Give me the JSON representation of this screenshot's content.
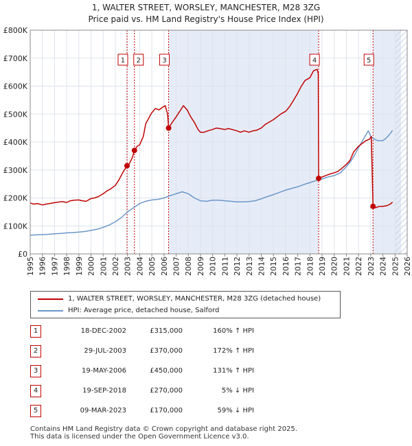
{
  "title_line1": "1, WALTER STREET, WORSLEY, MANCHESTER, M28 3ZG",
  "title_line2": "Price paid vs. HM Land Registry's House Price Index (HPI)",
  "chart_data": {
    "type": "line",
    "xlim": [
      1995,
      2026
    ],
    "ylim": [
      0,
      800000
    ],
    "y_ticks": [
      {
        "value": 0,
        "label": "£0"
      },
      {
        "value": 100000,
        "label": "£100K"
      },
      {
        "value": 200000,
        "label": "£200K"
      },
      {
        "value": 300000,
        "label": "£300K"
      },
      {
        "value": 400000,
        "label": "£400K"
      },
      {
        "value": 500000,
        "label": "£500K"
      },
      {
        "value": 600000,
        "label": "£600K"
      },
      {
        "value": 700000,
        "label": "£700K"
      },
      {
        "value": 800000,
        "label": "£800K"
      }
    ],
    "x_ticks": [
      "1995",
      "1996",
      "1997",
      "1998",
      "1999",
      "2000",
      "2001",
      "2002",
      "2003",
      "2004",
      "2005",
      "2006",
      "2007",
      "2008",
      "2009",
      "2010",
      "2011",
      "2012",
      "2013",
      "2014",
      "2015",
      "2016",
      "2017",
      "2018",
      "2019",
      "2020",
      "2021",
      "2022",
      "2023",
      "2024",
      "2025",
      "2026"
    ],
    "grid": true,
    "legend_position": "below",
    "colors": {
      "property": "#c00000",
      "hpi": "#6a96c8",
      "shade": "#e6ecf7",
      "hatch": "#c8d2e3"
    },
    "shaded_spans": [
      [
        2006.38,
        2018.72
      ],
      [
        2023.19,
        2025.5
      ]
    ],
    "hatched_span": [
      2025.0,
      2026.0
    ],
    "series": [
      {
        "name": "1, WALTER STREET, WORSLEY, MANCHESTER, M28 3ZG (detached house)",
        "x": [
          1995.0,
          1995.3,
          1995.6,
          1996.0,
          1996.3,
          1996.6,
          1997.0,
          1997.3,
          1997.6,
          1998.0,
          1998.3,
          1998.6,
          1999.0,
          1999.3,
          1999.6,
          2000.0,
          2000.3,
          2000.6,
          2001.0,
          2001.3,
          2001.6,
          2002.0,
          2002.3,
          2002.6,
          2002.96,
          2003.1,
          2003.4,
          2003.57,
          2003.8,
          2004.0,
          2004.3,
          2004.5,
          2004.8,
          2005.0,
          2005.3,
          2005.6,
          2005.9,
          2006.1,
          2006.3,
          2006.38,
          2006.6,
          2007.0,
          2007.3,
          2007.6,
          2007.9,
          2008.2,
          2008.5,
          2008.8,
          2009.0,
          2009.3,
          2009.6,
          2010.0,
          2010.3,
          2010.6,
          2011.0,
          2011.3,
          2011.6,
          2012.0,
          2012.3,
          2012.6,
          2013.0,
          2013.3,
          2013.6,
          2014.0,
          2014.3,
          2014.6,
          2015.0,
          2015.3,
          2015.6,
          2016.0,
          2016.3,
          2016.6,
          2017.0,
          2017.3,
          2017.6,
          2018.0,
          2018.3,
          2018.6,
          2018.69,
          2018.72,
          2019.0,
          2019.3,
          2019.6,
          2020.0,
          2020.3,
          2020.6,
          2021.0,
          2021.3,
          2021.6,
          2022.0,
          2022.3,
          2022.6,
          2022.9,
          2023.05,
          2023.19,
          2023.4,
          2023.7,
          2024.0,
          2024.3,
          2024.6,
          2024.8
        ],
        "y": [
          182000,
          178000,
          180000,
          175000,
          178000,
          180000,
          183000,
          185000,
          187000,
          184000,
          190000,
          192000,
          193000,
          190000,
          188000,
          198000,
          200000,
          205000,
          215000,
          225000,
          232000,
          245000,
          265000,
          290000,
          315000,
          318000,
          345000,
          370000,
          385000,
          390000,
          420000,
          465000,
          490000,
          505000,
          520000,
          515000,
          525000,
          530000,
          500000,
          450000,
          465000,
          490000,
          510000,
          530000,
          515000,
          490000,
          470000,
          445000,
          435000,
          435000,
          440000,
          445000,
          450000,
          448000,
          445000,
          448000,
          445000,
          440000,
          435000,
          440000,
          435000,
          440000,
          442000,
          450000,
          462000,
          470000,
          480000,
          490000,
          500000,
          510000,
          525000,
          545000,
          575000,
          600000,
          620000,
          630000,
          655000,
          660000,
          645000,
          270000,
          275000,
          280000,
          285000,
          290000,
          295000,
          305000,
          320000,
          335000,
          365000,
          385000,
          395000,
          405000,
          410000,
          420000,
          170000,
          165000,
          170000,
          170000,
          172000,
          178000,
          185000
        ]
      },
      {
        "name": "HPI: Average price, detached house, Salford",
        "x": [
          1995.0,
          1995.5,
          1996.0,
          1996.5,
          1997.0,
          1997.5,
          1998.0,
          1998.5,
          1999.0,
          1999.5,
          2000.0,
          2000.5,
          2001.0,
          2001.5,
          2002.0,
          2002.5,
          2003.0,
          2003.5,
          2004.0,
          2004.5,
          2005.0,
          2005.5,
          2006.0,
          2006.5,
          2007.0,
          2007.5,
          2008.0,
          2008.5,
          2009.0,
          2009.5,
          2010.0,
          2010.5,
          2011.0,
          2011.5,
          2012.0,
          2012.5,
          2013.0,
          2013.5,
          2014.0,
          2014.5,
          2015.0,
          2015.5,
          2016.0,
          2016.5,
          2017.0,
          2017.5,
          2018.0,
          2018.5,
          2019.0,
          2019.5,
          2020.0,
          2020.5,
          2021.0,
          2021.5,
          2022.0,
          2022.4,
          2022.8,
          2023.0,
          2023.3,
          2023.6,
          2024.0,
          2024.3,
          2024.6,
          2024.8
        ],
        "y": [
          67000,
          68000,
          69000,
          70000,
          72000,
          73000,
          75000,
          76000,
          78000,
          80000,
          84000,
          88000,
          95000,
          103000,
          115000,
          130000,
          150000,
          165000,
          180000,
          188000,
          193000,
          195000,
          200000,
          208000,
          215000,
          222000,
          215000,
          200000,
          190000,
          188000,
          192000,
          192000,
          190000,
          188000,
          186000,
          186000,
          187000,
          190000,
          197000,
          205000,
          212000,
          220000,
          228000,
          234000,
          240000,
          248000,
          255000,
          262000,
          268000,
          275000,
          280000,
          290000,
          312000,
          340000,
          380000,
          410000,
          440000,
          420000,
          410000,
          405000,
          405000,
          415000,
          430000,
          442000
        ]
      }
    ],
    "events": [
      {
        "num": "1",
        "date": "18-DEC-2002",
        "x": 2002.96,
        "price_value": 315000,
        "price": "£315,000",
        "pct": "160% ↑ HPI"
      },
      {
        "num": "2",
        "date": "29-JUL-2003",
        "x": 2003.57,
        "price_value": 370000,
        "price": "£370,000",
        "pct": "172% ↑ HPI"
      },
      {
        "num": "3",
        "date": "19-MAY-2006",
        "x": 2006.38,
        "price_value": 450000,
        "price": "£450,000",
        "pct": "131% ↑ HPI"
      },
      {
        "num": "4",
        "date": "19-SEP-2018",
        "x": 2018.72,
        "price_value": 270000,
        "price": "£270,000",
        "pct": "5% ↓ HPI"
      },
      {
        "num": "5",
        "date": "09-MAR-2023",
        "x": 2023.19,
        "price_value": 170000,
        "price": "£170,000",
        "pct": "59% ↓ HPI"
      }
    ]
  },
  "legend": {
    "property": "1, WALTER STREET, WORSLEY, MANCHESTER, M28 3ZG (detached house)",
    "hpi": "HPI: Average price, detached house, Salford"
  },
  "footer_line1": "Contains HM Land Registry data © Crown copyright and database right 2025.",
  "footer_line2": "This data is licensed under the Open Government Licence v3.0."
}
